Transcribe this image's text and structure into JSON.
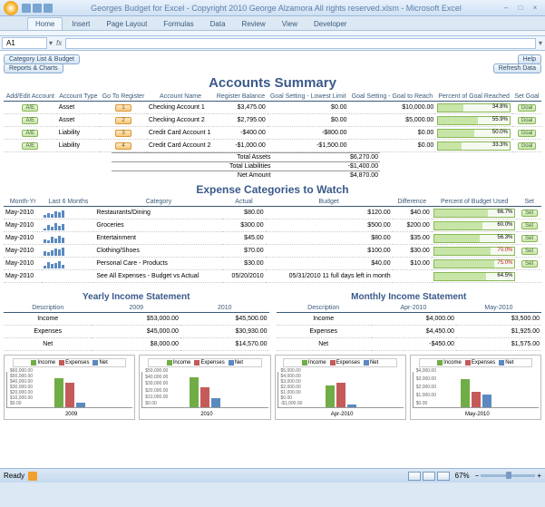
{
  "title": "Georges Budget for Excel - Copyright 2010  George Alzamora  All rights reserved.xlsm - Microsoft Excel",
  "ribbon": {
    "tabs": [
      "Home",
      "Insert",
      "Page Layout",
      "Formulas",
      "Data",
      "Review",
      "View",
      "Developer"
    ],
    "active": 0
  },
  "namebox": "A1",
  "buttons": {
    "catlist": "Category List & Budget",
    "reports": "Reports & Charts",
    "help": "Help",
    "refresh": "Refresh Data"
  },
  "sec1": {
    "title": "Accounts Summary",
    "hdr": [
      "Add/Edit Account",
      "Account Type",
      "Go To Register",
      "Account Name",
      "Register Balance",
      "Goal Setting - Lowest Limit",
      "Goal Setting - Goal to Reach",
      "Percent of Goal Reached",
      "Set Goal"
    ],
    "rows": [
      {
        "ae": "A/E",
        "type": "Asset",
        "goto": "1",
        "name": "Checking Account 1",
        "bal": "$3,475.00",
        "low": "$0.00",
        "goal": "$10,000.00",
        "pct": 34.8,
        "pctlbl": "34.8%",
        "set": "Goal"
      },
      {
        "ae": "A/E",
        "type": "Asset",
        "goto": "2",
        "name": "Checking Account 2",
        "bal": "$2,795.00",
        "low": "$0.00",
        "goal": "$5,000.00",
        "pct": 55.9,
        "pctlbl": "55.9%",
        "set": "Goal"
      },
      {
        "ae": "A/E",
        "type": "Liability",
        "goto": "3",
        "name": "Credit Card Account 1",
        "bal": "-$400.00",
        "low": "-$800.00",
        "goal": "$0.00",
        "pct": 50.0,
        "pctlbl": "50.0%",
        "set": "Goal"
      },
      {
        "ae": "A/E",
        "type": "Liability",
        "goto": "4",
        "name": "Credit Card Account 2",
        "bal": "-$1,000.00",
        "low": "-$1,500.00",
        "goal": "$0.00",
        "pct": 33.3,
        "pctlbl": "33.3%",
        "set": "Goal"
      }
    ],
    "totals": [
      [
        "Total Assets",
        "$6,270.00"
      ],
      [
        "Total Liabilities",
        "-$1,400.00"
      ],
      [
        "Net Amount",
        "$4,870.00"
      ]
    ]
  },
  "sec2": {
    "title": "Expense Categories to Watch",
    "hdr": [
      "Month-Yr",
      "Last 6 Months",
      "Category",
      "Actual",
      "Budget",
      "Difference",
      "Percent of Budget Used",
      "Set"
    ],
    "rows": [
      {
        "my": "May-2010",
        "spark": [
          3,
          5,
          4,
          7,
          6,
          8
        ],
        "cat": "Restaurants/Dining",
        "act": "$80.00",
        "bud": "$120.00",
        "diff": "$40.00",
        "pct": 66.7,
        "pctlbl": "66.7%",
        "set": "Set",
        "red": false
      },
      {
        "my": "May-2010",
        "spark": [
          2,
          6,
          4,
          8,
          5,
          7
        ],
        "cat": "Groceries",
        "act": "$300.00",
        "bud": "$500.00",
        "diff": "$200.00",
        "pct": 60.0,
        "pctlbl": "60.0%",
        "set": "Set",
        "red": false
      },
      {
        "my": "May-2010",
        "spark": [
          4,
          3,
          7,
          5,
          8,
          6
        ],
        "cat": "Entertainment",
        "act": "$45.00",
        "bud": "$80.00",
        "diff": "$35.00",
        "pct": 56.3,
        "pctlbl": "56.3%",
        "set": "Set",
        "red": false
      },
      {
        "my": "May-2010",
        "spark": [
          5,
          4,
          6,
          8,
          7,
          9
        ],
        "cat": "Clothing/Shoes",
        "act": "$70.00",
        "bud": "$100.00",
        "diff": "$30.00",
        "pct": 70.0,
        "pctlbl": "70.0%",
        "set": "Set",
        "red": true
      },
      {
        "my": "May-2010",
        "spark": [
          3,
          7,
          5,
          6,
          8,
          4
        ],
        "cat": "Personal Care - Products",
        "act": "$30.00",
        "bud": "$40.00",
        "diff": "$10.00",
        "pct": 75.0,
        "pctlbl": "75.0%",
        "set": "Set",
        "red": true
      },
      {
        "my": "May-2010",
        "spark": [],
        "cat": "See All Expenses - Budget vs Actual",
        "act": "05/20/2010",
        "bud": "05/31/2010 11 full days left in month",
        "diff": "",
        "pct": 64.5,
        "pctlbl": "64.5%",
        "set": "",
        "red": false
      }
    ]
  },
  "sec3": {
    "ytitle": "Yearly Income Statement",
    "mtitle": "Monthly Income Statement",
    "yhdr": [
      "Description",
      "2009",
      "2010"
    ],
    "yrows": [
      [
        "Income",
        "$53,000.00",
        "$45,500.00"
      ],
      [
        "Expenses",
        "$45,000.00",
        "$30,930.00"
      ],
      [
        "Net",
        "$8,000.00",
        "$14,570.00"
      ]
    ],
    "mhdr": [
      "Description",
      "Apr-2010",
      "May-2010"
    ],
    "mrows": [
      [
        "Income",
        "$4,000.00",
        "$3,500.00"
      ],
      [
        "Expenses",
        "$4,450.00",
        "$1,925.00"
      ],
      [
        "Net",
        "-$450.00",
        "$1,575.00"
      ]
    ]
  },
  "charts": {
    "colors": {
      "income": "#70ad47",
      "expenses": "#c55a5a",
      "net": "#5a8ac0"
    },
    "legend": [
      "Income",
      "Expenses",
      "Net"
    ],
    "c": [
      {
        "label": "2009",
        "ticks": [
          "$60,000.00",
          "$50,000.00",
          "$40,000.00",
          "$30,000.00",
          "$20,000.00",
          "$10,000.00",
          "$0.00"
        ],
        "bars": [
          53000,
          45000,
          8000
        ],
        "max": 60000
      },
      {
        "label": "2010",
        "ticks": [
          "$50,000.00",
          "$40,000.00",
          "$30,000.00",
          "$20,000.00",
          "$10,000.00",
          "$0.00"
        ],
        "bars": [
          45500,
          30930,
          14570
        ],
        "max": 50000
      },
      {
        "label": "Apr-2010",
        "ticks": [
          "$5,000.00",
          "$4,000.00",
          "$3,000.00",
          "$2,000.00",
          "$1,000.00",
          "$0.00",
          "-$1,000.00"
        ],
        "bars": [
          4000,
          4450,
          -450
        ],
        "max": 5000,
        "min": -1000
      },
      {
        "label": "May-2010",
        "ticks": [
          "$4,000.00",
          "$3,000.00",
          "$2,000.00",
          "$1,000.00",
          "$0.00"
        ],
        "bars": [
          3500,
          1925,
          1575
        ],
        "max": 4000
      }
    ]
  },
  "status": {
    "ready": "Ready",
    "zoom": "67%"
  }
}
